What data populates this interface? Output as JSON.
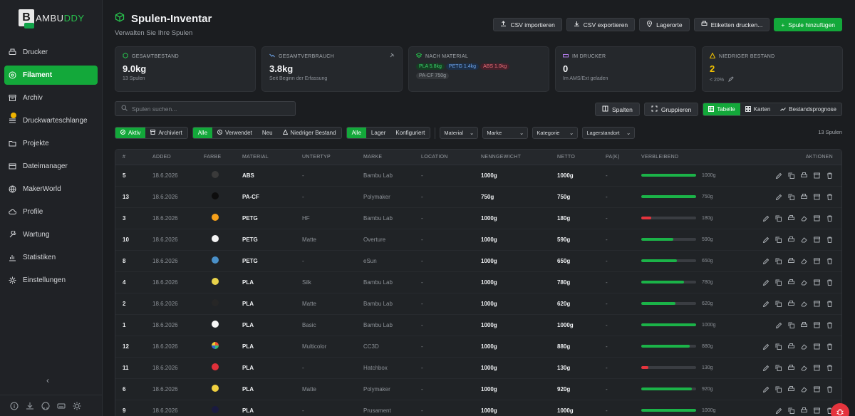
{
  "app": {
    "brand_prefix": "B",
    "brand_word": "AMBU",
    "brand_accent": "DDY"
  },
  "sidebar": {
    "items": [
      {
        "label": "Drucker",
        "icon": "printer-icon"
      },
      {
        "label": "Filament",
        "icon": "filament-icon",
        "active": true
      },
      {
        "label": "Archiv",
        "icon": "archive-icon"
      },
      {
        "label": "Druckwarteschlange",
        "icon": "queue-icon",
        "badge": true
      },
      {
        "label": "Projekte",
        "icon": "folder-icon"
      },
      {
        "label": "Dateimanager",
        "icon": "file-manager-icon"
      },
      {
        "label": "MakerWorld",
        "icon": "globe-icon"
      },
      {
        "label": "Profile",
        "icon": "cloud-icon"
      },
      {
        "label": "Wartung",
        "icon": "wrench-icon"
      },
      {
        "label": "Statistiken",
        "icon": "chart-icon"
      },
      {
        "label": "Einstellungen",
        "icon": "gear-icon"
      }
    ],
    "collapse_glyph": "‹"
  },
  "header": {
    "title": "Spulen-Inventar",
    "subtitle": "Verwalten Sie Ihre Spulen",
    "buttons": {
      "import": "CSV importieren",
      "export": "CSV exportieren",
      "locations": "Lagerorte",
      "labels": "Etiketten drucken...",
      "add": "Spule hinzufügen"
    }
  },
  "stats": {
    "total": {
      "label": "GESAMTBESTAND",
      "value": "9.0kg",
      "sub": "13 Spulen"
    },
    "usage": {
      "label": "GESAMTVERBRAUCH",
      "value": "3.8kg",
      "sub": "Seit Beginn der Erfassung"
    },
    "material": {
      "label": "NACH MATERIAL",
      "pla": "PLA 5.8kg",
      "petg": "PETG 1.4kg",
      "abs": "ABS 1.0kg",
      "pacf": "PA-CF 750g"
    },
    "printer": {
      "label": "IM DRUCKER",
      "value": "0",
      "sub": "Im AMS/Ext geladen"
    },
    "low": {
      "label": "NIEDRIGER BESTAND",
      "value": "2",
      "sub": "< 20%"
    }
  },
  "toolbar": {
    "search_placeholder": "Spulen suchen...",
    "columns": "Spalten",
    "group": "Gruppieren",
    "table": "Tabelle",
    "cards": "Karten",
    "forecast": "Bestandsprognose"
  },
  "filters": {
    "status": [
      "Aktiv",
      "Archiviert"
    ],
    "usage": [
      "Alle",
      "Verwendet",
      "Neu",
      "Niedriger Bestand"
    ],
    "config": [
      "Alle",
      "Lager",
      "Konfiguriert"
    ],
    "material": "Material",
    "brand": "Marke",
    "category": "Kategorie",
    "location": "Lagerstandort",
    "count": "13 Spulen"
  },
  "table": {
    "headers": [
      "#",
      "ADDED",
      "FARBE",
      "MATERIAL",
      "UNTERTYP",
      "MARKE",
      "LOCATION",
      "NENNGEWICHT",
      "NETTO",
      "PA(K)",
      "VERBLEIBEND",
      "AKTIONEN"
    ],
    "rows": [
      {
        "id": "5",
        "added": "18.6.2026",
        "color": "#3a3a3a",
        "material": "ABS",
        "subtype": "-",
        "brand": "Bambu Lab",
        "location": "-",
        "nominal": "1000g",
        "net": "1000g",
        "pak": "-",
        "remaining": 1.0,
        "remaining_label": "1000g",
        "actions": 5
      },
      {
        "id": "13",
        "added": "18.6.2026",
        "color": "#0d0d0d",
        "material": "PA-CF",
        "subtype": "-",
        "brand": "Polymaker",
        "location": "-",
        "nominal": "750g",
        "net": "750g",
        "pak": "-",
        "remaining": 1.0,
        "remaining_label": "750g",
        "actions": 5
      },
      {
        "id": "3",
        "added": "18.6.2026",
        "color": "#f5a01a",
        "material": "PETG",
        "subtype": "HF",
        "brand": "Bambu Lab",
        "location": "-",
        "nominal": "1000g",
        "net": "180g",
        "pak": "-",
        "remaining": 0.18,
        "remaining_label": "180g",
        "actions": 6
      },
      {
        "id": "10",
        "added": "18.6.2026",
        "color": "#f4f4f4",
        "material": "PETG",
        "subtype": "Matte",
        "brand": "Overture",
        "location": "-",
        "nominal": "1000g",
        "net": "590g",
        "pak": "-",
        "remaining": 0.59,
        "remaining_label": "590g",
        "actions": 6
      },
      {
        "id": "8",
        "added": "18.6.2026",
        "color": "#4a90c8",
        "material": "PETG",
        "subtype": "-",
        "brand": "eSun",
        "location": "-",
        "nominal": "1000g",
        "net": "650g",
        "pak": "-",
        "remaining": 0.65,
        "remaining_label": "650g",
        "actions": 6
      },
      {
        "id": "4",
        "added": "18.6.2026",
        "color": "#e8d24a",
        "material": "PLA",
        "subtype": "Silk",
        "brand": "Bambu Lab",
        "location": "-",
        "nominal": "1000g",
        "net": "780g",
        "pak": "-",
        "remaining": 0.78,
        "remaining_label": "780g",
        "actions": 6
      },
      {
        "id": "2",
        "added": "18.6.2026",
        "color": "#262626",
        "material": "PLA",
        "subtype": "Matte",
        "brand": "Bambu Lab",
        "location": "-",
        "nominal": "1000g",
        "net": "620g",
        "pak": "-",
        "remaining": 0.62,
        "remaining_label": "620g",
        "actions": 6
      },
      {
        "id": "1",
        "added": "18.6.2026",
        "color": "#f7f7f7",
        "material": "PLA",
        "subtype": "Basic",
        "brand": "Bambu Lab",
        "location": "-",
        "nominal": "1000g",
        "net": "1000g",
        "pak": "-",
        "remaining": 1.0,
        "remaining_label": "1000g",
        "actions": 5
      },
      {
        "id": "12",
        "added": "18.6.2026",
        "color": "multi",
        "material": "PLA",
        "subtype": "Multicolor",
        "brand": "CC3D",
        "location": "-",
        "nominal": "1000g",
        "net": "880g",
        "pak": "-",
        "remaining": 0.88,
        "remaining_label": "880g",
        "actions": 6
      },
      {
        "id": "11",
        "added": "18.6.2026",
        "color": "#e0303a",
        "material": "PLA",
        "subtype": "-",
        "brand": "Hatchbox",
        "location": "-",
        "nominal": "1000g",
        "net": "130g",
        "pak": "-",
        "remaining": 0.13,
        "remaining_label": "130g",
        "actions": 6
      },
      {
        "id": "6",
        "added": "18.6.2026",
        "color": "#f0d040",
        "material": "PLA",
        "subtype": "Matte",
        "brand": "Polymaker",
        "location": "-",
        "nominal": "1000g",
        "net": "920g",
        "pak": "-",
        "remaining": 0.92,
        "remaining_label": "920g",
        "actions": 6
      },
      {
        "id": "9",
        "added": "18.6.2026",
        "color": "#1a1a40",
        "material": "PLA",
        "subtype": "-",
        "brand": "Prusament",
        "location": "-",
        "nominal": "1000g",
        "net": "1000g",
        "pak": "-",
        "remaining": 1.0,
        "remaining_label": "1000g",
        "actions": 5
      }
    ]
  },
  "colors": {
    "accent": "#13a83a",
    "danger": "#e5343d",
    "warn": "#f2c200"
  }
}
